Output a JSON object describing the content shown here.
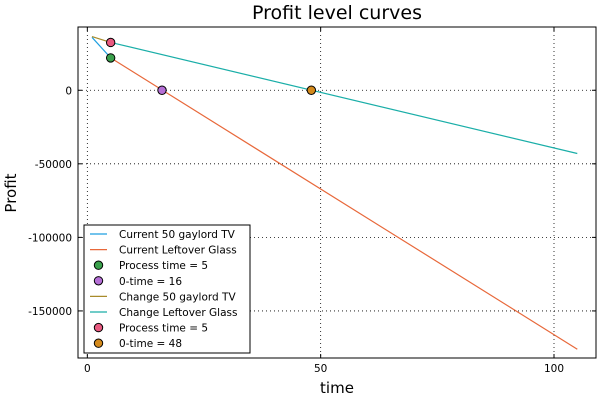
{
  "chart_data": {
    "type": "line",
    "title": "Profit level curves",
    "xlabel": "time",
    "ylabel": "Profit",
    "xlim": [
      -2,
      109
    ],
    "ylim": [
      -182000,
      43000
    ],
    "xticks": [
      0,
      50,
      100
    ],
    "xtick_labels": [
      "0",
      "50",
      "100"
    ],
    "yticks": [
      0,
      -50000,
      -100000,
      -150000
    ],
    "ytick_labels": [
      "0",
      "-50000",
      "-100000",
      "-150000"
    ],
    "grid": true,
    "legend_position": "bottom-left",
    "series": [
      {
        "name": "Current 50 gaylord TV",
        "kind": "line",
        "color": "#1f9fe0",
        "x": [
          1,
          5
        ],
        "y": [
          36000,
          22000
        ]
      },
      {
        "name": "Current Leftover Glass",
        "kind": "line",
        "color": "#e8683a",
        "x": [
          5,
          105
        ],
        "y": [
          22000,
          -176000
        ]
      },
      {
        "name": "Process time = 5",
        "kind": "marker",
        "color": "#3aa04c",
        "x": [
          5
        ],
        "y": [
          22000
        ]
      },
      {
        "name": "0-time = 16",
        "kind": "marker",
        "color": "#b56fd6",
        "x": [
          16
        ],
        "y": [
          0
        ]
      },
      {
        "name": "Change 50 gaylord TV",
        "kind": "line",
        "color": "#a88b2a",
        "x": [
          1,
          5
        ],
        "y": [
          36500,
          32500
        ]
      },
      {
        "name": "Change Leftover Glass",
        "kind": "line",
        "color": "#1aaea8",
        "x": [
          5,
          105
        ],
        "y": [
          32500,
          -43000
        ]
      },
      {
        "name": "Process time = 5",
        "kind": "marker",
        "color": "#e85a80",
        "x": [
          5
        ],
        "y": [
          32500
        ]
      },
      {
        "name": "0-time = 48",
        "kind": "marker",
        "color": "#d48a1c",
        "x": [
          48
        ],
        "y": [
          0
        ]
      }
    ]
  }
}
